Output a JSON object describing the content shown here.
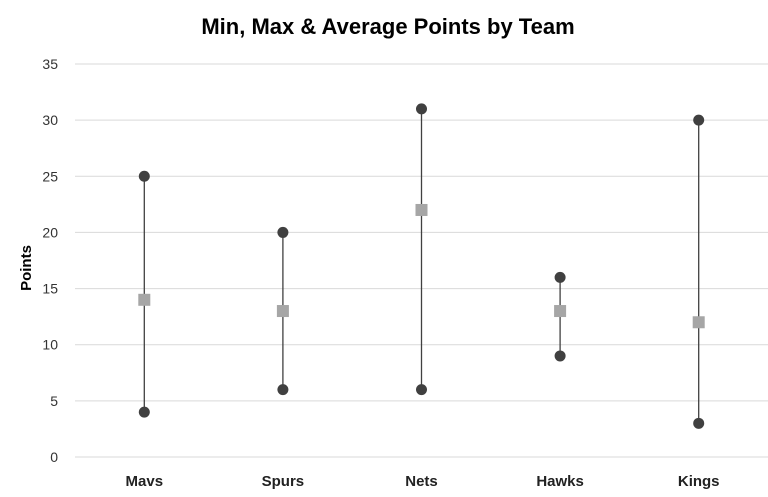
{
  "chart_data": {
    "type": "scatter",
    "title": "Min, Max & Average Points by Team",
    "xlabel": "",
    "ylabel": "Points",
    "ylim": [
      0,
      35
    ],
    "yticks": [
      0,
      5,
      10,
      15,
      20,
      25,
      30,
      35
    ],
    "grid": true,
    "legend": "none",
    "categories": [
      "Mavs",
      "Spurs",
      "Nets",
      "Hawks",
      "Kings"
    ],
    "series": [
      {
        "name": "",
        "role": "min",
        "marker": "circle",
        "values": [
          4,
          6,
          6,
          9,
          3
        ]
      },
      {
        "name": "",
        "role": "max",
        "marker": "circle",
        "values": [
          25,
          20,
          31,
          16,
          30
        ]
      },
      {
        "name": "",
        "role": "average",
        "marker": "square",
        "values": [
          14,
          13,
          22,
          13,
          12
        ]
      }
    ],
    "colors": {
      "minmax_marker": "#404040",
      "average_marker": "#a6a6a6",
      "range_line": "#404040",
      "gridline": "#d9d9d9"
    }
  }
}
